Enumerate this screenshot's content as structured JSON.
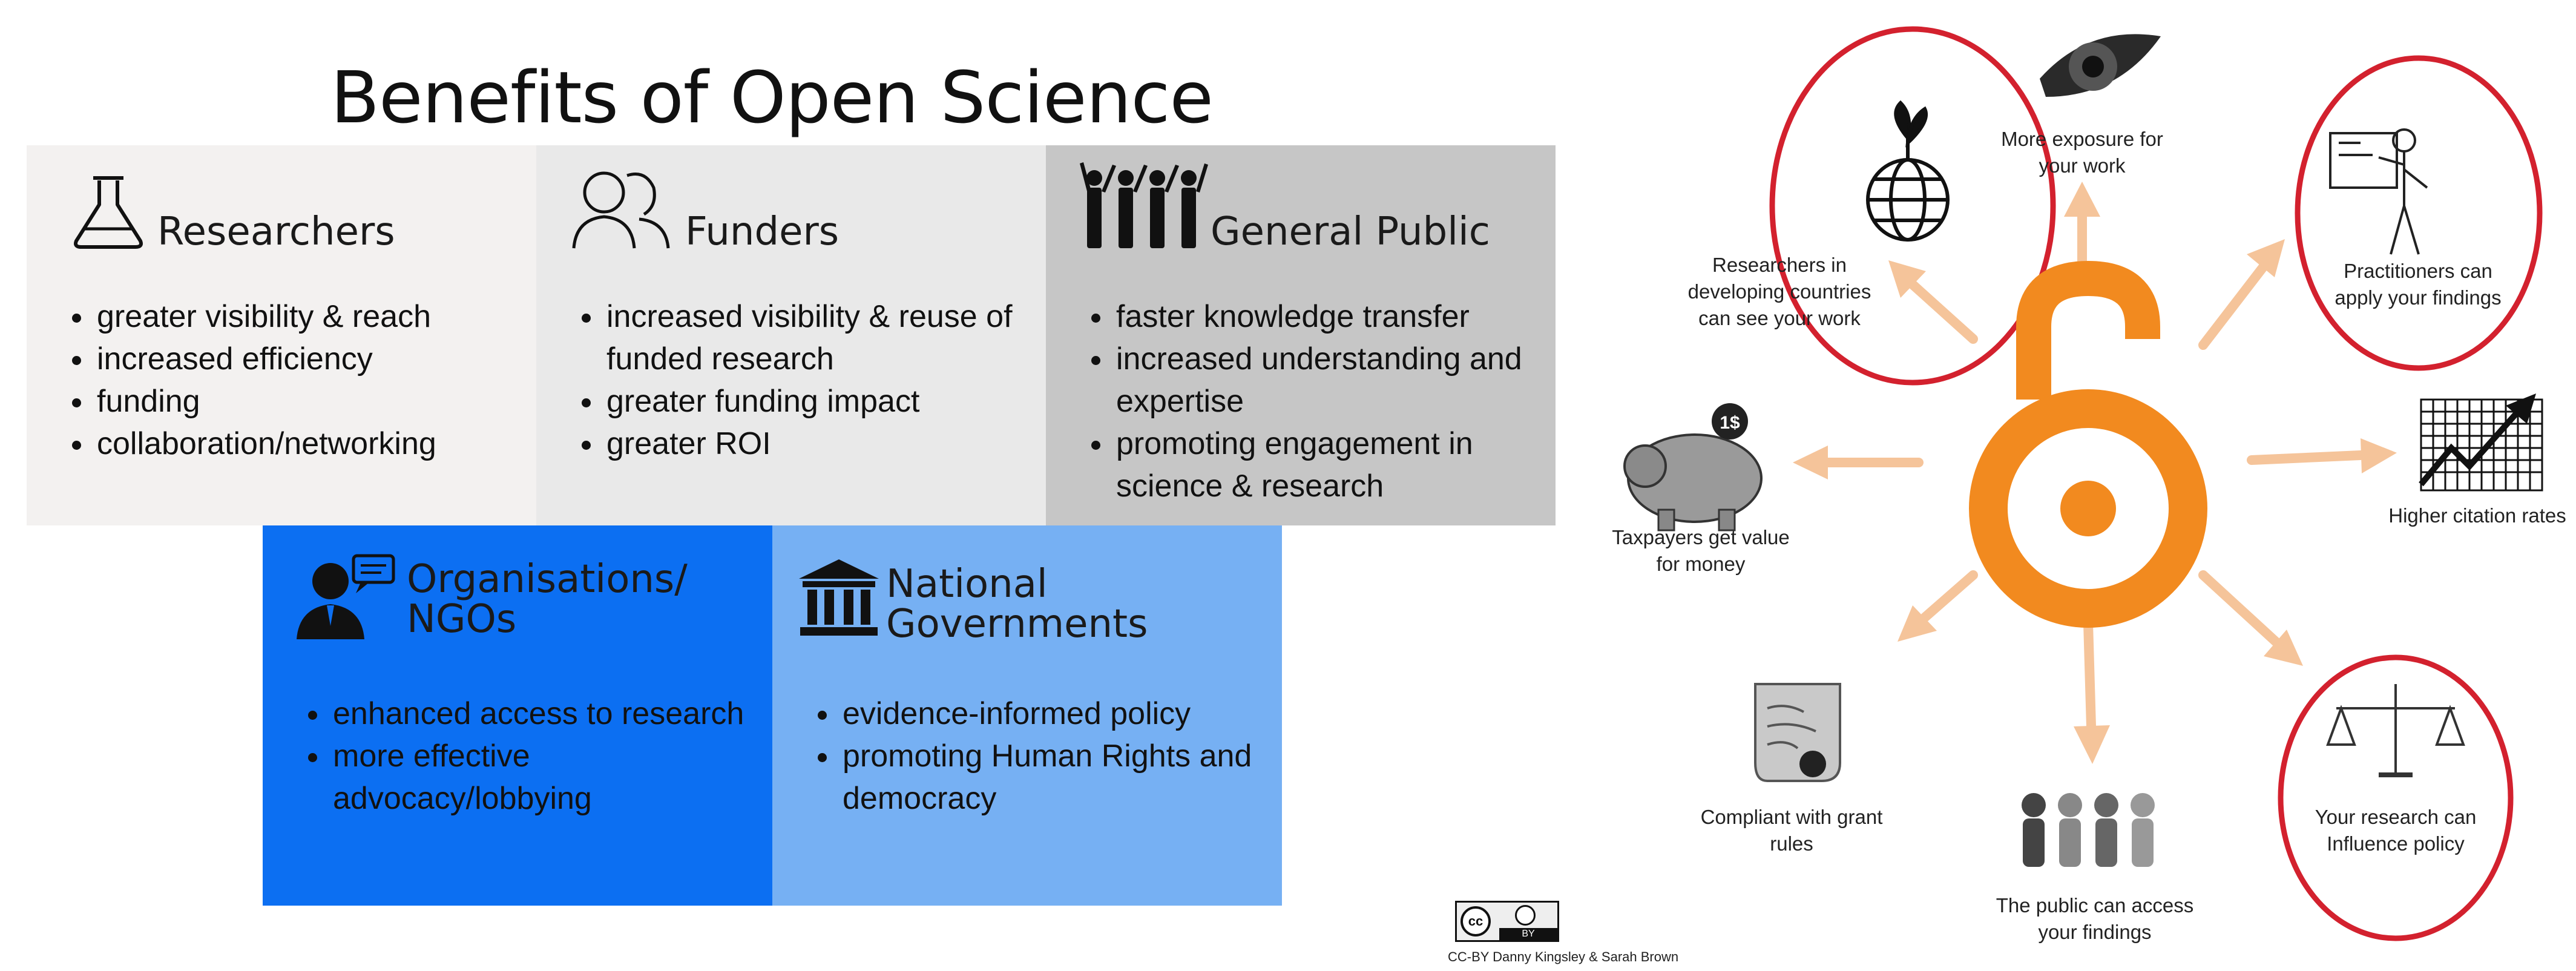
{
  "title": "Benefits of Open Science",
  "cards": [
    {
      "id": "researchers",
      "heading": "Researchers",
      "bg": "#f3f1f0",
      "items": [
        "greater visibility & reach",
        "increased efficiency",
        "funding",
        "collaboration/networking"
      ]
    },
    {
      "id": "funders",
      "heading": "Funders",
      "bg": "#e9e9e9",
      "items": [
        "increased visibility & reuse of funded research",
        "greater funding impact",
        "greater ROI"
      ]
    },
    {
      "id": "public",
      "heading": "General Public",
      "bg": "#c6c6c6",
      "items": [
        "faster knowledge transfer",
        "increased understanding and expertise",
        "promoting engagement in science & research"
      ]
    },
    {
      "id": "orgs",
      "heading_line1": "Organisations/",
      "heading_line2": "NGOs",
      "bg": "#0c6ff2",
      "items": [
        "enhanced access to research",
        "more effective advocacy/lobbying"
      ]
    },
    {
      "id": "govts",
      "heading_line1": "National",
      "heading_line2": "Governments",
      "bg": "#76b0f3",
      "items": [
        "evidence-informed policy",
        "promoting Human Rights and democracy"
      ]
    }
  ],
  "oa_diagram": {
    "accent": "#f28a1f",
    "arrow_color": "#f5c49a",
    "highlight": "#d3212e",
    "labels": {
      "exposure": [
        "More exposure for",
        "your work"
      ],
      "developing": [
        "Researchers in",
        "developing countries",
        "can see your work"
      ],
      "practitioners": [
        "Practitioners can",
        "apply your findings"
      ],
      "citation": [
        "Higher citation rates"
      ],
      "taxpayers": [
        "Taxpayers get value",
        "for money"
      ],
      "compliant": [
        "Compliant with grant",
        "rules"
      ],
      "public": [
        "The public can access",
        "your findings"
      ],
      "policy": [
        "Your research can",
        "Influence policy"
      ]
    },
    "piggy_coin": "1$",
    "icons": [
      "eye-icon",
      "globe-plant-icon",
      "presenter-icon",
      "rising-chart-icon",
      "piggy-bank-icon",
      "scroll-certificate-icon",
      "people-group-icon",
      "scales-icon"
    ]
  },
  "license_badge": {
    "left": "cc",
    "right": "BY"
  },
  "credit": "CC-BY Danny Kingsley &  Sarah Brown"
}
